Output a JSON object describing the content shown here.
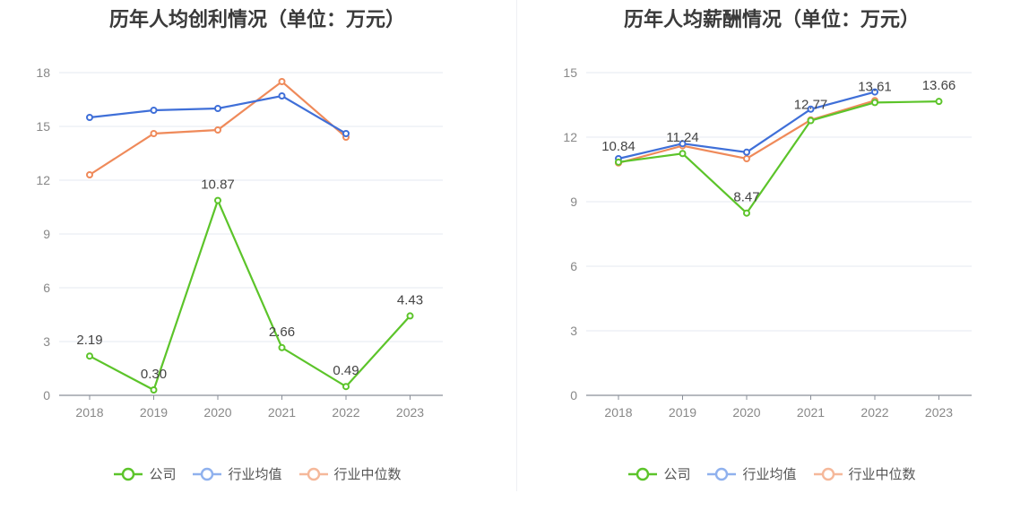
{
  "chart_data": [
    {
      "type": "line",
      "title": "历年人均创利情况（单位：万元）",
      "categories": [
        "2018",
        "2019",
        "2020",
        "2021",
        "2022",
        "2023"
      ],
      "ylim": [
        0,
        18
      ],
      "yticks": [
        0,
        3,
        6,
        9,
        12,
        15,
        18
      ],
      "grid": true,
      "legend_position": "bottom",
      "series": [
        {
          "name": "公司",
          "color": "#5cc42a",
          "values": [
            2.19,
            0.3,
            10.87,
            2.66,
            0.49,
            4.43
          ],
          "labels": [
            "2.19",
            "0.30",
            "10.87",
            "2.66",
            "0.49",
            "4.43"
          ]
        },
        {
          "name": "行业均值",
          "color": "#3f6fd8",
          "values": [
            15.5,
            15.9,
            16.0,
            16.7,
            14.6,
            null
          ]
        },
        {
          "name": "行业中位数",
          "color": "#ef8a5a",
          "values": [
            12.3,
            14.6,
            14.8,
            17.5,
            14.4,
            null
          ]
        }
      ]
    },
    {
      "type": "line",
      "title": "历年人均薪酬情况（单位：万元）",
      "categories": [
        "2018",
        "2019",
        "2020",
        "2021",
        "2022",
        "2023"
      ],
      "ylim": [
        0,
        15
      ],
      "yticks": [
        0,
        3,
        6,
        9,
        12,
        15
      ],
      "grid": true,
      "legend_position": "bottom",
      "series": [
        {
          "name": "公司",
          "color": "#5cc42a",
          "values": [
            10.84,
            11.24,
            8.47,
            12.77,
            13.61,
            13.66
          ],
          "labels": [
            "10.84",
            "11.24",
            "8.47",
            "12.77",
            "13.61",
            "13.66"
          ]
        },
        {
          "name": "行业均值",
          "color": "#3f6fd8",
          "values": [
            11.0,
            11.7,
            11.3,
            13.3,
            14.1,
            null
          ]
        },
        {
          "name": "行业中位数",
          "color": "#ef8a5a",
          "values": [
            10.8,
            11.6,
            11.0,
            12.8,
            13.7,
            null
          ]
        }
      ]
    }
  ]
}
